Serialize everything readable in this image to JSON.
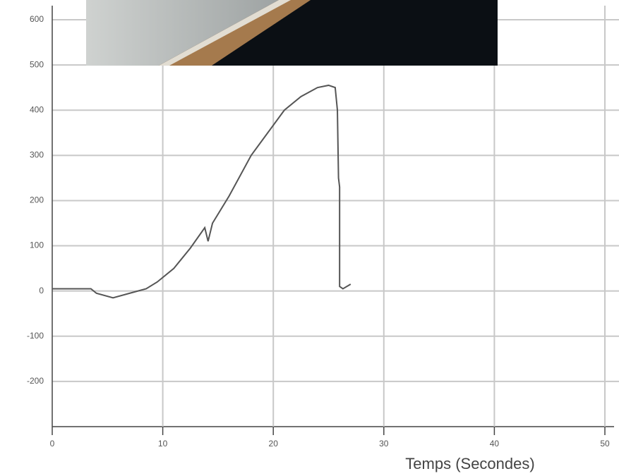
{
  "chart_data": {
    "type": "line",
    "x_label": "Temps (Secondes)",
    "x": [
      0,
      3.5,
      4,
      5.5,
      7,
      8.5,
      9.5,
      11,
      12.5,
      13.8,
      14.1,
      14.5,
      16,
      18,
      19.5,
      21,
      22.5,
      24,
      25,
      25.6,
      25.8,
      25.9,
      26,
      26,
      26.3,
      27
    ],
    "series": [
      {
        "color": "#555555",
        "values": [
          5,
          5,
          -5,
          -15,
          -5,
          5,
          20,
          50,
          95,
          140,
          110,
          150,
          210,
          300,
          350,
          400,
          430,
          450,
          455,
          450,
          400,
          250,
          230,
          10,
          5,
          15
        ]
      }
    ],
    "xlim": [
      0,
      50
    ],
    "xticks": [
      0,
      10,
      20,
      30,
      40,
      50
    ],
    "ylim": [
      -300,
      600
    ],
    "yticks": [
      600,
      500,
      400,
      300,
      200,
      100,
      0,
      -100,
      -200
    ],
    "grid": true
  }
}
